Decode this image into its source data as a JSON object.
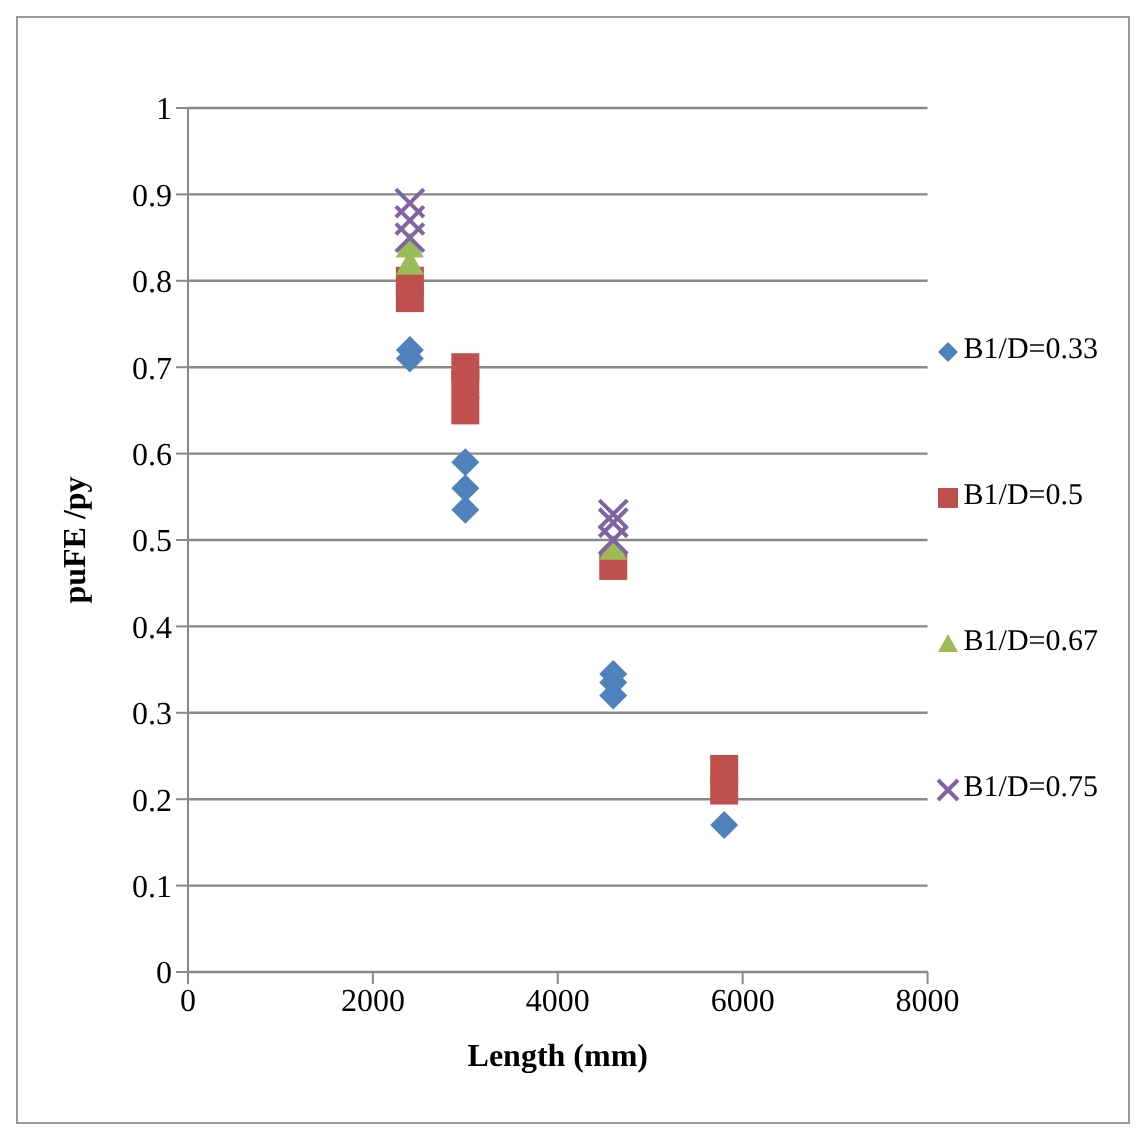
{
  "chart_data": {
    "type": "scatter",
    "xlabel": "Length (mm)",
    "ylabel": "puFE /py",
    "xlim": [
      0,
      8000
    ],
    "xticks": [
      0,
      2000,
      4000,
      6000,
      8000
    ],
    "ylim": [
      0,
      1
    ],
    "yticks": [
      0,
      0.1,
      0.2,
      0.3,
      0.4,
      0.5,
      0.6,
      0.7,
      0.8,
      0.9,
      1
    ],
    "grid": "y",
    "legend": "right",
    "series": [
      {
        "name": "B1/D=0.33",
        "color": "#4f81bd",
        "marker": "diamond",
        "x": [
          2400,
          2400,
          3000,
          3000,
          3000,
          4600,
          4600,
          4600,
          5800
        ],
        "values": [
          0.71,
          0.72,
          0.535,
          0.56,
          0.59,
          0.32,
          0.335,
          0.345,
          0.17
        ]
      },
      {
        "name": "B1/D=0.5",
        "color": "#c0504d",
        "marker": "square",
        "x": [
          2400,
          2400,
          3000,
          3000,
          3000,
          4600,
          5800,
          5800
        ],
        "values": [
          0.78,
          0.8,
          0.65,
          0.68,
          0.7,
          0.47,
          0.21,
          0.235
        ]
      },
      {
        "name": "B1/D=0.67",
        "color": "#9bbb59",
        "marker": "triangle",
        "x": [
          2400,
          2400,
          4600
        ],
        "values": [
          0.82,
          0.84,
          0.49
        ]
      },
      {
        "name": "B1/D=0.75",
        "color": "#8064a2",
        "marker": "cross",
        "x": [
          2400,
          2400,
          2400,
          4600,
          4600,
          4600
        ],
        "values": [
          0.85,
          0.87,
          0.89,
          0.5,
          0.52,
          0.53
        ]
      }
    ]
  }
}
